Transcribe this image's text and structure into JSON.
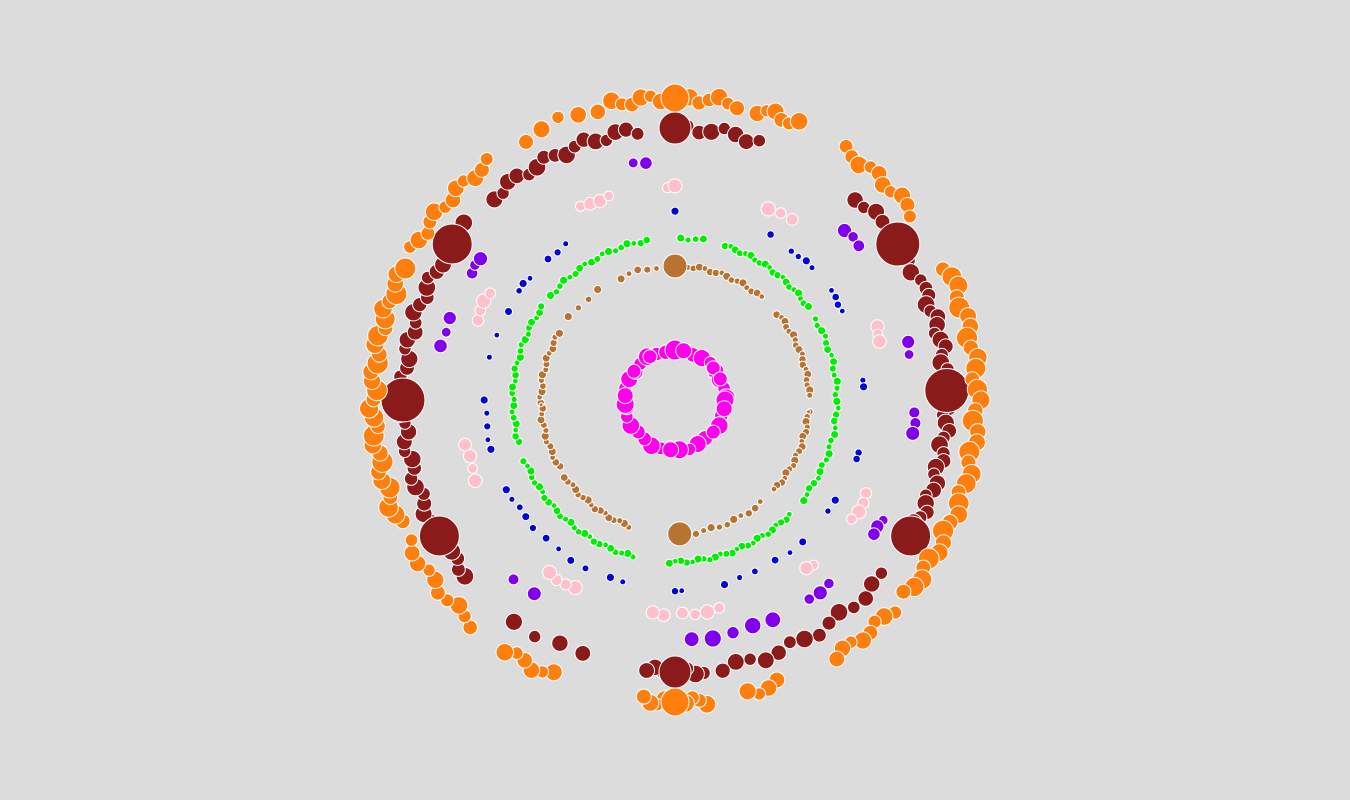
{
  "background_color": "#dcdcdc",
  "node_stroke_color": "#ffffff",
  "rings": [
    {
      "name": "magenta",
      "color": "#ff00ee",
      "clusters": [
        {
          "from": 0,
          "to": 360,
          "count": 34,
          "size": 2,
          "jitter": 0,
          "bigs": [
            {
              "at": 0,
              "size": 10
            },
            {
              "at": 10,
              "size": 8
            },
            {
              "at": 50,
              "size": 7
            },
            {
              "at": 65,
              "size": 7
            },
            {
              "at": 90,
              "size": 9
            },
            {
              "at": 100,
              "size": 8
            },
            {
              "at": 130,
              "size": 7
            },
            {
              "at": 175,
              "size": 9
            },
            {
              "at": 185,
              "size": 8
            },
            {
              "at": 265,
              "size": 9
            },
            {
              "at": 275,
              "size": 8
            },
            {
              "at": 305,
              "size": 7
            },
            {
              "at": 330,
              "size": 7
            }
          ]
        }
      ]
    },
    {
      "name": "brown",
      "color": "#b87333",
      "clusters": [
        {
          "from": 3,
          "to": 40,
          "count": 16,
          "size": 0,
          "jitter": 0
        },
        {
          "from": 50,
          "to": 88,
          "count": 18,
          "size": 0,
          "jitter": 0
        },
        {
          "from": 95,
          "to": 132,
          "count": 18,
          "size": 0,
          "jitter": 0,
          "bigs": [
            {
              "at": 95,
              "size": 2
            }
          ]
        },
        {
          "from": 140,
          "to": 178,
          "count": 12,
          "size": 0,
          "jitter": 0,
          "bigs": [
            {
              "at": 178,
              "size": 12
            }
          ]
        },
        {
          "from": 200,
          "to": 235,
          "count": 16,
          "size": 0,
          "jitter": 0
        },
        {
          "from": 240,
          "to": 300,
          "count": 26,
          "size": 0,
          "jitter": 0,
          "bigs": [
            {
              "at": 268,
              "size": 2
            }
          ]
        },
        {
          "from": 308,
          "to": 325,
          "count": 4,
          "size": 0,
          "jitter": 0
        },
        {
          "from": 336,
          "to": 352,
          "count": 5,
          "size": 0,
          "jitter": 0,
          "bigs": [
            {
              "at": 0,
              "size": 12
            }
          ]
        }
      ]
    },
    {
      "name": "green",
      "color": "#00ee00",
      "clusters": [
        {
          "from": 2,
          "to": 10,
          "count": 4,
          "size": 0,
          "jitter": 0
        },
        {
          "from": 18,
          "to": 55,
          "count": 20,
          "size": 0,
          "jitter": 0
        },
        {
          "from": 60,
          "to": 128,
          "count": 30,
          "size": 0,
          "jitter": 0
        },
        {
          "from": 135,
          "to": 182,
          "count": 24,
          "size": 0,
          "jitter": 0
        },
        {
          "from": 195,
          "to": 248,
          "count": 26,
          "size": 0,
          "jitter": 0
        },
        {
          "from": 255,
          "to": 305,
          "count": 24,
          "size": 0,
          "jitter": 0
        },
        {
          "from": 310,
          "to": 350,
          "count": 18,
          "size": 0,
          "jitter": 0
        }
      ]
    },
    {
      "name": "blue",
      "color": "#0000dd",
      "clusters": [
        {
          "from": 0,
          "to": 0,
          "count": 1,
          "size": 0,
          "jitter": 0
        },
        {
          "from": 28,
          "to": 32,
          "count": 1,
          "size": 0,
          "jitter": 0
        },
        {
          "from": 38,
          "to": 46,
          "count": 4,
          "size": 0,
          "jitter": 0
        },
        {
          "from": 55,
          "to": 62,
          "count": 4,
          "size": 0,
          "jitter": 0
        },
        {
          "from": 84,
          "to": 86,
          "count": 2,
          "size": 0,
          "jitter": 0
        },
        {
          "from": 106,
          "to": 108,
          "count": 2,
          "size": 0,
          "jitter": 0
        },
        {
          "from": 122,
          "to": 126,
          "count": 2,
          "size": 0,
          "jitter": 0
        },
        {
          "from": 138,
          "to": 148,
          "count": 3,
          "size": 0,
          "jitter": 0
        },
        {
          "from": 155,
          "to": 165,
          "count": 3,
          "size": 0,
          "jitter": 0
        },
        {
          "from": 178,
          "to": 180,
          "count": 2,
          "size": 0,
          "jitter": 0
        },
        {
          "from": 196,
          "to": 200,
          "count": 2,
          "size": 0,
          "jitter": 0
        },
        {
          "from": 208,
          "to": 228,
          "count": 5,
          "size": 0,
          "jitter": 0
        },
        {
          "from": 232,
          "to": 242,
          "count": 4,
          "size": 0,
          "jitter": 0
        },
        {
          "from": 255,
          "to": 258,
          "count": 2,
          "size": 0,
          "jitter": 0
        },
        {
          "from": 262,
          "to": 270,
          "count": 3,
          "size": 0,
          "jitter": 0
        },
        {
          "from": 282,
          "to": 284,
          "count": 1,
          "size": 0,
          "jitter": 0
        },
        {
          "from": 290,
          "to": 298,
          "count": 2,
          "size": 0,
          "jitter": 0
        },
        {
          "from": 305,
          "to": 310,
          "count": 3,
          "size": 0,
          "jitter": 0
        },
        {
          "from": 318,
          "to": 325,
          "count": 3,
          "size": 0,
          "jitter": 0
        }
      ]
    },
    {
      "name": "pink",
      "color": "#ffc0cb",
      "clusters": [
        {
          "from": 26,
          "to": 33,
          "count": 3,
          "size": 1,
          "jitter": 0
        },
        {
          "from": 70,
          "to": 74,
          "count": 3,
          "size": 1,
          "jitter": 0
        },
        {
          "from": 116,
          "to": 124,
          "count": 4,
          "size": 1,
          "jitter": 0
        },
        {
          "from": 140,
          "to": 142,
          "count": 2,
          "size": 1,
          "jitter": 0
        },
        {
          "from": 168,
          "to": 178,
          "count": 4,
          "size": 1,
          "jitter": 0
        },
        {
          "from": 183,
          "to": 186,
          "count": 2,
          "size": 1,
          "jitter": 0
        },
        {
          "from": 208,
          "to": 216,
          "count": 4,
          "size": 1,
          "jitter": 0
        },
        {
          "from": 248,
          "to": 258,
          "count": 4,
          "size": 1,
          "jitter": 0
        },
        {
          "from": 292,
          "to": 300,
          "count": 4,
          "size": 1,
          "jitter": 0
        },
        {
          "from": 334,
          "to": 342,
          "count": 4,
          "size": 1,
          "jitter": 0
        },
        {
          "from": 358,
          "to": 360,
          "count": 2,
          "size": 1,
          "jitter": 0
        }
      ]
    },
    {
      "name": "purple",
      "color": "#8000ee",
      "clusters": [
        {
          "from": 45,
          "to": 50,
          "count": 3,
          "size": 1,
          "jitter": 0
        },
        {
          "from": 76,
          "to": 79,
          "count": 2,
          "size": 1,
          "jitter": 0
        },
        {
          "from": 93,
          "to": 98,
          "count": 3,
          "size": 1,
          "jitter": 0
        },
        {
          "from": 120,
          "to": 124,
          "count": 3,
          "size": 1,
          "jitter": 0
        },
        {
          "from": 140,
          "to": 146,
          "count": 3,
          "size": 1,
          "jitter": 0
        },
        {
          "from": 156,
          "to": 176,
          "count": 5,
          "size": 2,
          "jitter": 0
        },
        {
          "from": 216,
          "to": 222,
          "count": 2,
          "size": 1,
          "jitter": 0
        },
        {
          "from": 283,
          "to": 290,
          "count": 3,
          "size": 1,
          "jitter": 0
        },
        {
          "from": 302,
          "to": 306,
          "count": 3,
          "size": 1,
          "jitter": 0
        },
        {
          "from": 350,
          "to": 353,
          "count": 2,
          "size": 1,
          "jitter": 0
        }
      ]
    },
    {
      "name": "darkred",
      "color": "#8b1a1a",
      "clusters": [
        {
          "from": 0,
          "to": 18,
          "count": 8,
          "size": 2,
          "jitter": 0,
          "bigs": [
            {
              "at": 0,
              "size": 16
            }
          ]
        },
        {
          "from": 42,
          "to": 64,
          "count": 10,
          "size": 2,
          "jitter": 0,
          "bigs": [
            {
              "at": 55,
              "size": 22
            }
          ]
        },
        {
          "from": 66,
          "to": 122,
          "count": 36,
          "size": 2,
          "jitter": 0,
          "bigs": [
            {
              "at": 88,
              "size": 22
            },
            {
              "at": 120,
              "size": 20
            }
          ]
        },
        {
          "from": 130,
          "to": 170,
          "count": 14,
          "size": 2,
          "jitter": 0
        },
        {
          "from": 174,
          "to": 186,
          "count": 8,
          "size": 2,
          "jitter": 0,
          "bigs": [
            {
              "at": 180,
              "size": 16
            }
          ]
        },
        {
          "from": 200,
          "to": 216,
          "count": 4,
          "size": 2,
          "jitter": 0
        },
        {
          "from": 230,
          "to": 310,
          "count": 42,
          "size": 2,
          "jitter": 0,
          "bigs": [
            {
              "at": 240,
              "size": 20
            },
            {
              "at": 270,
              "size": 22
            },
            {
              "at": 305,
              "size": 20
            }
          ]
        },
        {
          "from": 318,
          "to": 352,
          "count": 16,
          "size": 2,
          "jitter": 0
        }
      ]
    },
    {
      "name": "orange",
      "color": "#ff7f0e",
      "clusters": [
        {
          "from": 348,
          "to": 12,
          "count": 14,
          "size": 2,
          "jitter": 0,
          "bigs": [
            {
              "at": 0,
              "size": 14
            }
          ]
        },
        {
          "from": 16,
          "to": 24,
          "count": 6,
          "size": 2,
          "jitter": 0
        },
        {
          "from": 34,
          "to": 52,
          "count": 10,
          "size": 2,
          "jitter": 0
        },
        {
          "from": 64,
          "to": 130,
          "count": 34,
          "size": 3,
          "jitter": 0
        },
        {
          "from": 134,
          "to": 148,
          "count": 8,
          "size": 2,
          "jitter": 0
        },
        {
          "from": 160,
          "to": 166,
          "count": 4,
          "size": 2,
          "jitter": 0
        },
        {
          "from": 174,
          "to": 186,
          "count": 10,
          "size": 2,
          "jitter": 0,
          "bigs": [
            {
              "at": 180,
              "size": 14
            }
          ]
        },
        {
          "from": 204,
          "to": 214,
          "count": 6,
          "size": 2,
          "jitter": 0
        },
        {
          "from": 222,
          "to": 242,
          "count": 10,
          "size": 2,
          "jitter": 0
        },
        {
          "from": 246,
          "to": 296,
          "count": 30,
          "size": 3,
          "jitter": 0
        },
        {
          "from": 300,
          "to": 322,
          "count": 12,
          "size": 2,
          "jitter": 0
        },
        {
          "from": 330,
          "to": 345,
          "count": 5,
          "size": 2,
          "jitter": 0
        }
      ]
    }
  ]
}
